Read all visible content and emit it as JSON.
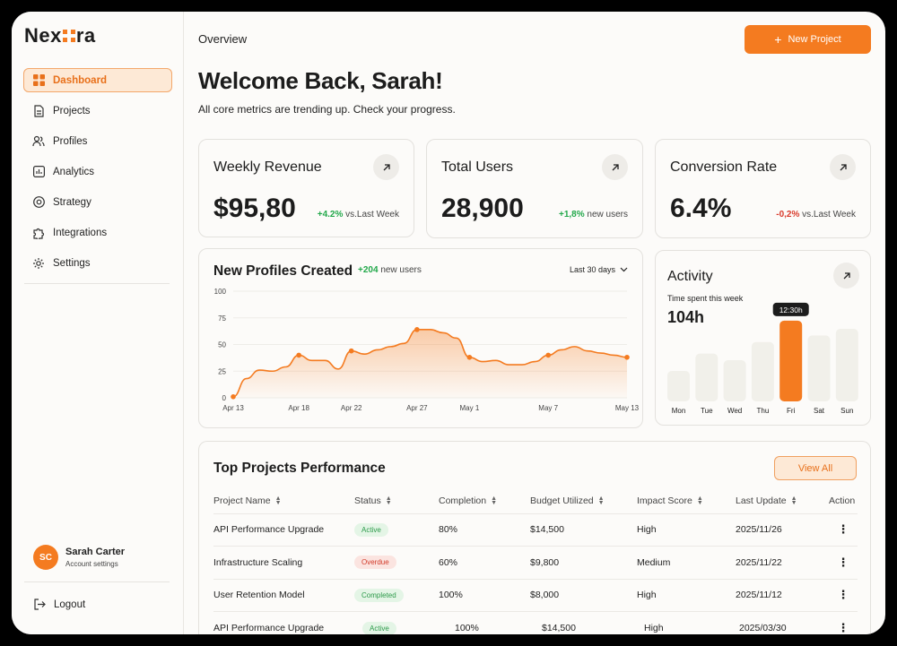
{
  "brand": {
    "prefix": "Nex",
    "suffix": "ra",
    "accent": "#f47b20"
  },
  "sidebar": {
    "items": [
      {
        "label": "Dashboard",
        "icon": "grid-icon",
        "active": true
      },
      {
        "label": "Projects",
        "icon": "document-icon"
      },
      {
        "label": "Profiles",
        "icon": "users-icon"
      },
      {
        "label": "Analytics",
        "icon": "bar-chart-icon"
      },
      {
        "label": "Strategy",
        "icon": "target-icon"
      },
      {
        "label": "Integrations",
        "icon": "puzzle-icon"
      },
      {
        "label": "Settings",
        "icon": "gear-icon"
      }
    ],
    "user": {
      "initials": "SC",
      "name": "Sarah Carter",
      "sub": "Account settings"
    },
    "logout": "Logout"
  },
  "header": {
    "breadcrumb": "Overview",
    "new_project": "New Project"
  },
  "welcome": {
    "title": "Welcome Back, Sarah!",
    "subtitle": "All core metrics are trending up. Check your progress."
  },
  "metrics": [
    {
      "title": "Weekly Revenue",
      "value": "$95,80",
      "delta": "+4.2%",
      "delta_suffix": "vs.Last Week",
      "trend": "up"
    },
    {
      "title": "Total Users",
      "value": "28,900",
      "delta": "+1,8%",
      "delta_suffix": "new users",
      "trend": "up"
    },
    {
      "title": "Conversion Rate",
      "value": "6.4%",
      "delta": "-0,2%",
      "delta_suffix": "vs.Last Week",
      "trend": "down"
    }
  ],
  "profiles_chart": {
    "title": "New Profiles Created",
    "delta": "+204",
    "delta_suffix": "new users",
    "range": "Last 30 days"
  },
  "chart_data": [
    {
      "type": "area",
      "title": "New Profiles Created",
      "ylim": [
        0,
        100
      ],
      "yticks": [
        0,
        25,
        50,
        75,
        100
      ],
      "xticks": [
        "Apr 13",
        "Apr 18",
        "Apr 22",
        "Apr 27",
        "May 1",
        "May 7",
        "May 13"
      ],
      "x": [
        "Apr 13",
        "Apr 14",
        "Apr 15",
        "Apr 16",
        "Apr 17",
        "Apr 18",
        "Apr 19",
        "Apr 20",
        "Apr 21",
        "Apr 22",
        "Apr 23",
        "Apr 24",
        "Apr 25",
        "Apr 26",
        "Apr 27",
        "Apr 28",
        "Apr 29",
        "Apr 30",
        "May 1",
        "May 2",
        "May 3",
        "May 4",
        "May 5",
        "May 6",
        "May 7",
        "May 8",
        "May 9",
        "May 10",
        "May 11",
        "May 12",
        "May 13"
      ],
      "values": [
        1,
        18,
        26,
        25,
        29,
        40,
        35,
        35,
        27,
        44,
        41,
        45,
        48,
        51,
        64,
        64,
        61,
        56,
        38,
        34,
        35,
        31,
        31,
        34,
        40,
        45,
        48,
        44,
        42,
        40,
        38
      ],
      "markers": [
        0,
        5,
        9,
        14,
        18,
        24,
        30
      ]
    },
    {
      "type": "bar",
      "title": "Activity",
      "categories": [
        "Mon",
        "Tue",
        "Wed",
        "Thu",
        "Fri",
        "Sat",
        "Sun"
      ],
      "values": [
        37,
        58,
        50,
        72,
        98,
        80,
        88
      ],
      "highlight": "Fri",
      "highlight_label": "12:30h"
    }
  ],
  "activity": {
    "title": "Activity",
    "subtitle": "Time spent this week",
    "value": "104h",
    "bar_color": "#f1f0ea",
    "highlight_color": "#f47b20"
  },
  "table": {
    "title": "Top Projects Performance",
    "view_all": "View All",
    "columns": [
      "Project Name",
      "Status",
      "Completion",
      "Budget Utilized",
      "Impact Score",
      "Last Update",
      "Action"
    ],
    "rows": [
      {
        "name": "API Performance Upgrade",
        "status": "Active",
        "completion": "80%",
        "budget": "$14,500",
        "impact": "High",
        "updated": "2025/11/26"
      },
      {
        "name": "Infrastructure Scaling",
        "status": "Overdue",
        "completion": "60%",
        "budget": "$9,800",
        "impact": "Medium",
        "updated": "2025/11/22"
      },
      {
        "name": "User Retention Model",
        "status": "Completed",
        "completion": "100%",
        "budget": "$8,000",
        "impact": "High",
        "updated": "2025/11/12"
      },
      {
        "name": "API Performance Upgrade",
        "status": "Active",
        "completion": "100%",
        "budget": "$14,500",
        "impact": "High",
        "updated": "2025/03/30"
      }
    ]
  }
}
